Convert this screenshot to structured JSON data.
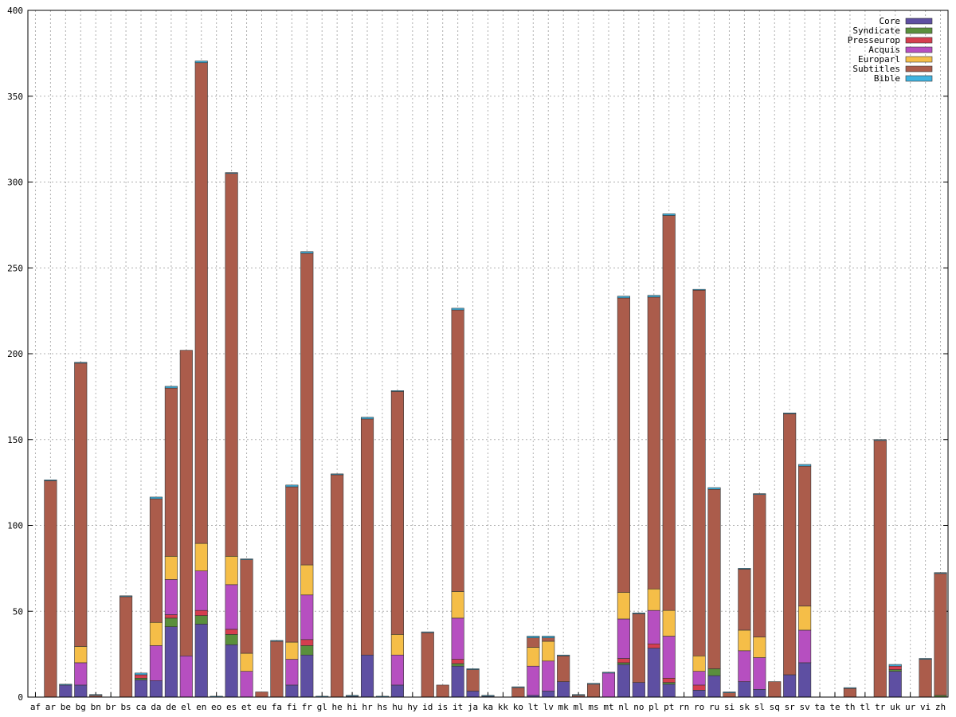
{
  "chart_data": {
    "type": "bar",
    "stacked": true,
    "title": "",
    "xlabel": "",
    "ylabel": "",
    "ylim": [
      0,
      400
    ],
    "yticks": [
      0,
      50,
      100,
      150,
      200,
      250,
      300,
      350,
      400
    ],
    "grid": true,
    "legend_position": "top-right",
    "categories": [
      "af",
      "ar",
      "be",
      "bg",
      "bn",
      "br",
      "bs",
      "ca",
      "da",
      "de",
      "el",
      "en",
      "eo",
      "es",
      "et",
      "eu",
      "fa",
      "fi",
      "fr",
      "gl",
      "he",
      "hi",
      "hr",
      "hs",
      "hu",
      "hy",
      "id",
      "is",
      "it",
      "ja",
      "ka",
      "kk",
      "ko",
      "lt",
      "lv",
      "mk",
      "ml",
      "ms",
      "mt",
      "nl",
      "no",
      "pl",
      "pt",
      "rn",
      "ro",
      "ru",
      "si",
      "sk",
      "sl",
      "sq",
      "sr",
      "sv",
      "ta",
      "te",
      "th",
      "tl",
      "tr",
      "uk",
      "ur",
      "vi",
      "zh"
    ],
    "series": [
      {
        "name": "Core",
        "color": "#5e4fa2",
        "values": [
          0,
          0,
          7,
          7,
          0,
          0,
          0,
          10,
          9.5,
          41,
          0,
          42.5,
          0,
          30.5,
          0,
          0,
          0,
          7,
          24.5,
          0,
          0,
          0.5,
          24.5,
          0,
          7,
          0,
          0,
          0,
          18,
          3.5,
          0.5,
          0,
          0,
          1,
          3.5,
          9,
          0,
          0,
          0,
          19,
          8.5,
          28.5,
          7.5,
          0,
          4,
          12.5,
          0,
          9,
          4.5,
          0,
          13,
          20,
          0,
          0,
          0,
          0,
          0,
          15,
          0,
          0,
          0
        ]
      },
      {
        "name": "Syndicate",
        "color": "#5a8f3c",
        "values": [
          0,
          0,
          0,
          0,
          0,
          0,
          0,
          1,
          0,
          5,
          0,
          5,
          0,
          6,
          0,
          0,
          0,
          0,
          5.5,
          0,
          0,
          0,
          0,
          0,
          0,
          0,
          0,
          0,
          1.5,
          0,
          0,
          0,
          0,
          0,
          0,
          0,
          0,
          0,
          0,
          1,
          0,
          0,
          1,
          0,
          0,
          4,
          0,
          0,
          0,
          0,
          0,
          0,
          0,
          0,
          0,
          0,
          0,
          1,
          0,
          0,
          1
        ]
      },
      {
        "name": "Presseurop",
        "color": "#d53e4f",
        "values": [
          0,
          0,
          0,
          0,
          0,
          0,
          0,
          2,
          0,
          2,
          0,
          3,
          0,
          3,
          0,
          0,
          0,
          0,
          3.5,
          0,
          0,
          0,
          0,
          0,
          0,
          0,
          0,
          0,
          2.5,
          0,
          0,
          0,
          0,
          0,
          0,
          0,
          0,
          0,
          0,
          2.5,
          0,
          2.5,
          2.5,
          0,
          3,
          0,
          0,
          0,
          0,
          0,
          0,
          0,
          0,
          0,
          0,
          0,
          0,
          2,
          0,
          0,
          0
        ]
      },
      {
        "name": "Acquis",
        "color": "#b64fc0",
        "values": [
          0,
          0,
          0,
          13,
          0,
          0,
          0,
          0,
          20.5,
          20.5,
          24,
          23,
          0,
          26,
          15,
          0,
          0,
          15,
          26,
          0,
          0,
          0,
          0,
          0,
          17.5,
          0,
          0,
          0,
          24,
          0,
          0,
          0,
          0,
          17,
          17.5,
          0,
          0,
          0,
          14,
          23,
          0,
          19.5,
          24.5,
          0,
          8,
          0,
          0,
          18,
          18.5,
          0,
          0,
          19,
          0,
          0,
          0,
          0,
          0,
          0,
          0,
          0,
          0
        ]
      },
      {
        "name": "Europarl",
        "color": "#f5be48",
        "values": [
          0,
          0,
          0,
          9.5,
          0,
          0,
          0,
          0,
          13.5,
          13.5,
          0,
          16,
          0,
          16.5,
          10.5,
          0,
          0,
          10,
          17.5,
          0,
          0,
          0,
          0,
          0,
          12,
          0,
          0,
          0,
          15.5,
          0,
          0,
          0,
          0,
          11,
          11.5,
          0,
          0,
          0,
          0,
          15.5,
          0,
          12.5,
          15,
          0,
          9,
          0,
          0,
          12,
          12,
          0,
          0,
          14,
          0,
          0,
          0,
          0,
          0,
          0,
          0,
          0,
          0
        ]
      },
      {
        "name": "Subtitles",
        "color": "#ab5c4b",
        "values": [
          0,
          126,
          0,
          165,
          1,
          0,
          58.5,
          0,
          72,
          98,
          178,
          280,
          0,
          223,
          54.5,
          3,
          32.5,
          90.5,
          181.5,
          0,
          129.5,
          0,
          137.5,
          0,
          141.5,
          0,
          37.5,
          7,
          164,
          12.5,
          0,
          0,
          5.5,
          5.5,
          2,
          15,
          1,
          7.5,
          0,
          171.5,
          40,
          170,
          230,
          0,
          213,
          104.5,
          2.5,
          35.5,
          83,
          9,
          152,
          81.5,
          0,
          0,
          5,
          0,
          149.5,
          0,
          0,
          22,
          71
        ]
      },
      {
        "name": "Bible",
        "color": "#3fb3e0",
        "values": [
          0,
          0.5,
          0.5,
          0.5,
          0.5,
          0,
          0.5,
          1,
          1,
          1,
          0,
          1,
          0.5,
          0.5,
          0.5,
          0,
          0.5,
          1,
          1,
          0.5,
          0.5,
          0.5,
          1,
          0.5,
          0.5,
          0,
          0.5,
          0,
          1,
          0.5,
          0.5,
          0,
          0.5,
          1,
          1,
          0.5,
          0.5,
          0.5,
          0.5,
          1,
          0.5,
          1,
          1,
          0,
          0.5,
          1,
          0.5,
          0.5,
          0.5,
          0,
          0.5,
          1,
          0,
          0,
          0.5,
          0,
          0.5,
          1,
          0,
          0.5,
          0.5
        ]
      }
    ]
  }
}
